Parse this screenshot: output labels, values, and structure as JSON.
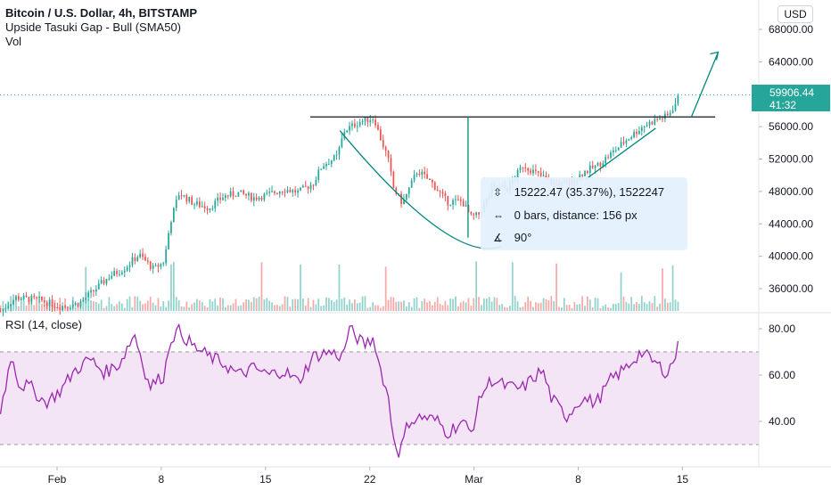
{
  "header": {
    "symbol_line": "Bitcoin / U.S. Dollar, 4h, BITSTAMP",
    "indicator_line": "Upside Tasuki Gap - Bull (SMA50)",
    "volume_line": "Vol",
    "rsi_line": "RSI (14, close)",
    "currency_button": "USD"
  },
  "price_tag": {
    "price": "59906.44",
    "countdown": "41:32",
    "color": "#26a69a"
  },
  "measure_tooltip": {
    "change": "15222.47 (35.37%), 1522247",
    "bars": "0 bars, distance: 156 px",
    "angle": "90°"
  },
  "colors": {
    "up": "#26a69a",
    "down": "#ef5350",
    "rsi_line": "#9c27b0",
    "rsi_band": "#f3e5f5",
    "drawing": "#00897b",
    "resistance": "#131722"
  },
  "chart_data": [
    {
      "type": "candlestick",
      "title": "Bitcoin / U.S. Dollar, 4h, BITSTAMP",
      "x_ticks": [
        "Feb",
        "8",
        "15",
        "22",
        "Mar",
        "8",
        "15"
      ],
      "x_tick_positions_days": [
        0,
        7,
        14,
        21,
        28,
        35,
        42
      ],
      "y_ticks": [
        "36000.00",
        "40000.00",
        "44000.00",
        "48000.00",
        "52000.00",
        "56000.00",
        "60000.00",
        "64000.00",
        "68000.00"
      ],
      "ylim": [
        34000,
        70000
      ],
      "last_price": 59906.44,
      "resistance_level": 57200,
      "price_anchors": [
        [
          -3.8,
          33200
        ],
        [
          -2.8,
          34900
        ],
        [
          -1.2,
          34600
        ],
        [
          0.2,
          33800
        ],
        [
          1.5,
          34200
        ],
        [
          2.5,
          35800
        ],
        [
          3.5,
          37500
        ],
        [
          4.5,
          38500
        ],
        [
          5.5,
          40200
        ],
        [
          6.5,
          38400
        ],
        [
          7.2,
          39400
        ],
        [
          7.6,
          44200
        ],
        [
          8.2,
          47800
        ],
        [
          9.2,
          46500
        ],
        [
          10.2,
          46000
        ],
        [
          11.2,
          47400
        ],
        [
          12.2,
          47800
        ],
        [
          13.2,
          47200
        ],
        [
          14.2,
          47600
        ],
        [
          15.2,
          48300
        ],
        [
          16.2,
          47900
        ],
        [
          17.2,
          49000
        ],
        [
          17.8,
          51200
        ],
        [
          18.8,
          52300
        ],
        [
          19.3,
          55500
        ],
        [
          20.3,
          56600
        ],
        [
          21.3,
          57100
        ],
        [
          21.6,
          55200
        ],
        [
          22.2,
          52200
        ],
        [
          22.6,
          48400
        ],
        [
          23.2,
          46500
        ],
        [
          24.2,
          50600
        ],
        [
          25.2,
          49000
        ],
        [
          26.2,
          46700
        ],
        [
          27.2,
          46800
        ],
        [
          27.8,
          44800
        ],
        [
          28.3,
          45100
        ],
        [
          29.3,
          48400
        ],
        [
          30.3,
          48400
        ],
        [
          31.3,
          51300
        ],
        [
          32.3,
          50100
        ],
        [
          33.3,
          49000
        ],
        [
          34.3,
          48800
        ],
        [
          35.3,
          50300
        ],
        [
          36.3,
          51200
        ],
        [
          37.3,
          52800
        ],
        [
          38.3,
          54500
        ],
        [
          39.3,
          56000
        ],
        [
          40.3,
          56900
        ],
        [
          41.0,
          57300
        ],
        [
          41.5,
          58700
        ],
        [
          41.7,
          59906
        ]
      ],
      "candle_count": 263
    },
    {
      "type": "line",
      "title": "RSI (14, close)",
      "y_ticks": [
        "40.00",
        "60.00",
        "80.00"
      ],
      "ylim": [
        22,
        86
      ],
      "bands": [
        30,
        70
      ],
      "anchors": [
        [
          -3.8,
          45
        ],
        [
          -3.0,
          70
        ],
        [
          -2.6,
          56
        ],
        [
          -1.8,
          55
        ],
        [
          -0.8,
          48
        ],
        [
          0.2,
          53
        ],
        [
          1.2,
          62
        ],
        [
          2.2,
          67
        ],
        [
          3.2,
          61
        ],
        [
          4.2,
          65
        ],
        [
          5.2,
          78
        ],
        [
          6.2,
          55
        ],
        [
          7.2,
          60
        ],
        [
          7.6,
          76
        ],
        [
          8.2,
          79
        ],
        [
          9.2,
          72
        ],
        [
          10.2,
          68
        ],
        [
          11.2,
          65
        ],
        [
          12.2,
          60
        ],
        [
          13.2,
          63
        ],
        [
          14.2,
          60
        ],
        [
          15.2,
          62
        ],
        [
          16.2,
          57
        ],
        [
          17.2,
          68
        ],
        [
          18.2,
          70
        ],
        [
          19.2,
          68
        ],
        [
          19.6,
          80
        ],
        [
          20.6,
          73
        ],
        [
          21.3,
          76
        ],
        [
          21.6,
          65
        ],
        [
          22.2,
          52
        ],
        [
          22.6,
          33
        ],
        [
          23.0,
          26
        ],
        [
          23.6,
          40
        ],
        [
          24.6,
          42
        ],
        [
          25.6,
          40
        ],
        [
          26.2,
          35
        ],
        [
          27.2,
          40
        ],
        [
          27.8,
          35
        ],
        [
          28.5,
          52
        ],
        [
          29.2,
          58
        ],
        [
          30.2,
          55
        ],
        [
          31.2,
          54
        ],
        [
          32.2,
          60
        ],
        [
          32.6,
          62
        ],
        [
          33.2,
          50
        ],
        [
          34.2,
          42
        ],
        [
          35.2,
          50
        ],
        [
          36.2,
          48
        ],
        [
          37.2,
          58
        ],
        [
          38.2,
          63
        ],
        [
          39.2,
          70
        ],
        [
          40.2,
          65
        ],
        [
          41.0,
          61
        ],
        [
          41.5,
          68
        ],
        [
          41.7,
          72
        ]
      ]
    }
  ]
}
